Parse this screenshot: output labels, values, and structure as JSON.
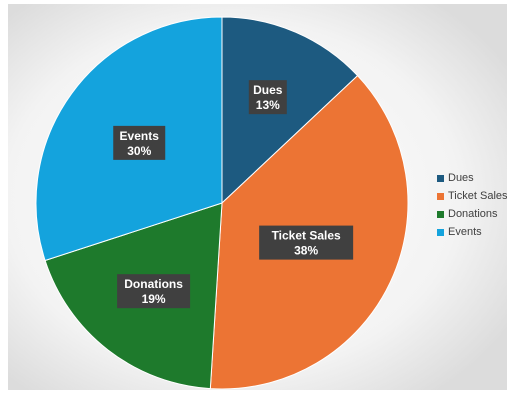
{
  "chart_data": {
    "type": "pie",
    "title": "",
    "categories": [
      "Dues",
      "Ticket Sales",
      "Donations",
      "Events"
    ],
    "values": [
      13,
      38,
      19,
      30
    ],
    "value_labels": [
      "13%",
      "38%",
      "19%",
      "30%"
    ],
    "colors": [
      "#1d5a80",
      "#ec7434",
      "#1e7a2c",
      "#14a3dd"
    ],
    "legend_position": "right",
    "legend": [
      "Dues",
      "Ticket Sales",
      "Donations",
      "Events"
    ]
  }
}
